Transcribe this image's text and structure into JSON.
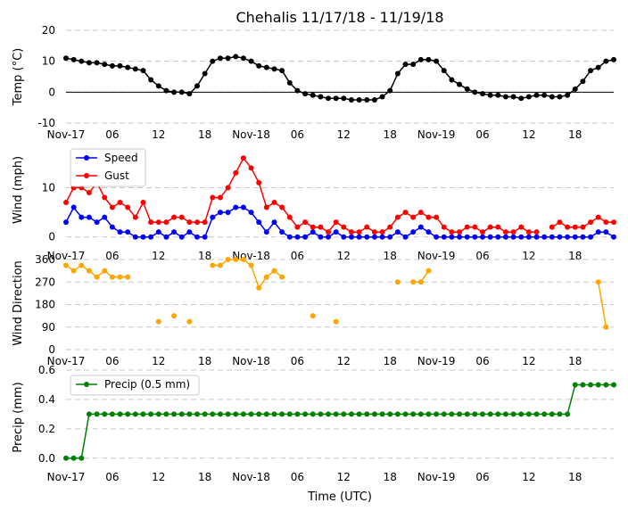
{
  "chart_data": {
    "type": "line",
    "title": "Chehalis 11/17/18 - 11/19/18",
    "xlabel": "Time (UTC)",
    "x_unit": "hours since 11/17 00:00 UTC",
    "x_range": [
      0,
      71
    ],
    "x_ticks": [
      {
        "x": 0,
        "label": "Nov-17"
      },
      {
        "x": 6,
        "label": "06"
      },
      {
        "x": 12,
        "label": "12"
      },
      {
        "x": 18,
        "label": "18"
      },
      {
        "x": 24,
        "label": "Nov-18"
      },
      {
        "x": 30,
        "label": "06"
      },
      {
        "x": 36,
        "label": "12"
      },
      {
        "x": 42,
        "label": "18"
      },
      {
        "x": 48,
        "label": "Nov-19"
      },
      {
        "x": 54,
        "label": "06"
      },
      {
        "x": 60,
        "label": "12"
      },
      {
        "x": 66,
        "label": "18"
      }
    ],
    "panels": [
      {
        "id": "temp",
        "ylabel": "Temp (°C)",
        "ylim": [
          -10,
          20
        ],
        "yticks": [
          -10,
          0,
          10,
          20
        ],
        "zero_line": true,
        "legend": false,
        "series": [
          {
            "name": "Temp",
            "color": "#000000",
            "connected": true,
            "values": [
              11,
              10.5,
              10,
              9.5,
              9.5,
              9,
              8.5,
              8.5,
              8,
              7.5,
              7,
              4,
              2,
              0.5,
              0,
              0,
              -0.5,
              2,
              6,
              10,
              11,
              11,
              11.5,
              11,
              10,
              8.5,
              8,
              7.5,
              7,
              3,
              0.5,
              -0.5,
              -1,
              -1.5,
              -2,
              -2,
              -2,
              -2.5,
              -2.5,
              -2.5,
              -2.5,
              -1.5,
              0.5,
              6,
              9,
              9,
              10.5,
              10.5,
              10,
              7,
              4,
              2.5,
              1,
              0,
              -0.5,
              -1,
              -1,
              -1.5,
              -1.5,
              -2,
              -1.5,
              -1,
              -1,
              -1.5,
              -1.5,
              -1,
              1,
              3.5,
              7,
              8,
              10,
              10.5
            ]
          }
        ]
      },
      {
        "id": "wind",
        "ylabel": "Wind (mph)",
        "ylim": [
          -1.5,
          17.5
        ],
        "yticks": [
          0,
          10
        ],
        "zero_line": false,
        "legend": true,
        "series": [
          {
            "name": "Speed",
            "color": "#0000ff",
            "connected": true,
            "values": [
              3,
              6,
              4,
              4,
              3,
              4,
              2,
              1,
              1,
              0,
              0,
              0,
              1,
              0,
              1,
              0,
              1,
              0,
              0,
              4,
              5,
              5,
              6,
              6,
              5,
              3,
              1,
              3,
              1,
              0,
              0,
              0,
              1,
              0,
              0,
              1,
              0,
              0,
              0,
              0,
              0,
              0,
              0,
              1,
              0,
              1,
              2,
              1,
              0,
              0,
              0,
              0,
              0,
              0,
              0,
              0,
              0,
              0,
              0,
              0,
              0,
              0,
              0,
              0,
              0,
              0,
              0,
              0,
              0,
              1,
              1,
              0
            ]
          },
          {
            "name": "Gust",
            "color": "#ff0000",
            "connected": true,
            "values": [
              7,
              10,
              10,
              9,
              11,
              8,
              6,
              7,
              6,
              4,
              7,
              3,
              3,
              3,
              4,
              4,
              3,
              3,
              3,
              8,
              8,
              10,
              13,
              16,
              14,
              11,
              6,
              7,
              6,
              4,
              2,
              3,
              2,
              2,
              1,
              3,
              2,
              1,
              1,
              2,
              1,
              1,
              2,
              4,
              5,
              4,
              5,
              4,
              4,
              2,
              1,
              1,
              2,
              2,
              1,
              2,
              2,
              1,
              1,
              2,
              1,
              1,
              null,
              2,
              3,
              2,
              2,
              2,
              3,
              4,
              3,
              3
            ]
          }
        ]
      },
      {
        "id": "dir",
        "ylabel": "Wind Direction",
        "ylim": [
          0,
          360
        ],
        "yticks": [
          0,
          90,
          180,
          270,
          360
        ],
        "zero_line": false,
        "legend": false,
        "series": [
          {
            "name": "Wind Direction",
            "color": "#ffa500",
            "connected": true,
            "values": [
              337,
              315,
              337,
              315,
              290,
              315,
              290,
              290,
              290,
              null,
              null,
              null,
              112,
              null,
              135,
              null,
              112,
              null,
              null,
              337,
              337,
              360,
              360,
              360,
              337,
              247,
              290,
              315,
              290,
              null,
              null,
              null,
              135,
              null,
              null,
              112,
              null,
              null,
              null,
              null,
              null,
              null,
              null,
              270,
              null,
              270,
              270,
              315,
              null,
              null,
              null,
              null,
              null,
              null,
              null,
              null,
              null,
              null,
              null,
              null,
              null,
              null,
              null,
              null,
              null,
              null,
              null,
              null,
              null,
              270,
              90,
              null
            ]
          }
        ]
      },
      {
        "id": "precip",
        "ylabel": "Precip (mm)",
        "ylim": [
          -0.05,
          0.6
        ],
        "yticks": [
          0.0,
          0.2,
          0.4,
          0.6
        ],
        "ytick_labels": [
          "0.0",
          "0.2",
          "0.4",
          "0.6"
        ],
        "zero_line": false,
        "legend": true,
        "series": [
          {
            "name": "Precip (0.5 mm)",
            "color": "#008000",
            "connected": true,
            "values": [
              0,
              0,
              0,
              0.3,
              0.3,
              0.3,
              0.3,
              0.3,
              0.3,
              0.3,
              0.3,
              0.3,
              0.3,
              0.3,
              0.3,
              0.3,
              0.3,
              0.3,
              0.3,
              0.3,
              0.3,
              0.3,
              0.3,
              0.3,
              0.3,
              0.3,
              0.3,
              0.3,
              0.3,
              0.3,
              0.3,
              0.3,
              0.3,
              0.3,
              0.3,
              0.3,
              0.3,
              0.3,
              0.3,
              0.3,
              0.3,
              0.3,
              0.3,
              0.3,
              0.3,
              0.3,
              0.3,
              0.3,
              0.3,
              0.3,
              0.3,
              0.3,
              0.3,
              0.3,
              0.3,
              0.3,
              0.3,
              0.3,
              0.3,
              0.3,
              0.3,
              0.3,
              0.3,
              0.3,
              0.3,
              0.3,
              0.5,
              0.5,
              0.5,
              0.5,
              0.5,
              0.5
            ]
          }
        ]
      }
    ]
  }
}
